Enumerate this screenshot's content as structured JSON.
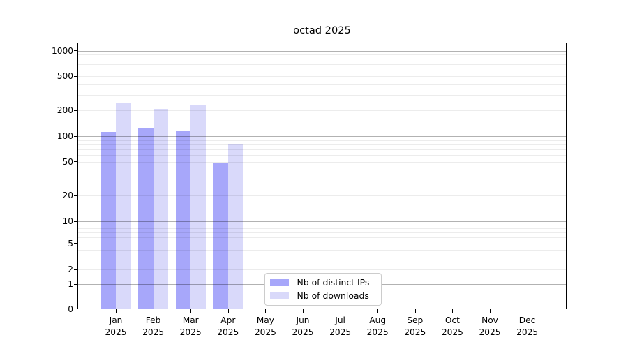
{
  "title": "octad 2025",
  "chart_data": {
    "type": "bar",
    "title": "octad 2025",
    "scale": "symlog",
    "grid": "on",
    "legend_position": "lower center",
    "categories": [
      "Jan",
      "Feb",
      "Mar",
      "Apr",
      "May",
      "Jun",
      "Jul",
      "Aug",
      "Sep",
      "Oct",
      "Nov",
      "Dec"
    ],
    "year_label": "2025",
    "yticks": [
      0,
      1,
      2,
      5,
      10,
      20,
      50,
      100,
      200,
      500,
      1000
    ],
    "ylim": [
      0,
      1259
    ],
    "series": [
      {
        "name": "Nb of distinct IPs",
        "color": "#a7a7fa",
        "values": [
          112,
          125,
          117,
          49,
          0,
          0,
          0,
          0,
          0,
          0,
          0,
          0
        ]
      },
      {
        "name": "Nb of downloads",
        "color": "#d9d9fa",
        "values": [
          240,
          208,
          231,
          80,
          0,
          0,
          0,
          0,
          0,
          0,
          0,
          0
        ]
      }
    ]
  },
  "legend": {
    "items": [
      {
        "label": "Nb of distinct IPs",
        "color": "#a7a7fa"
      },
      {
        "label": "Nb of downloads",
        "color": "#d9d9fa"
      }
    ]
  }
}
